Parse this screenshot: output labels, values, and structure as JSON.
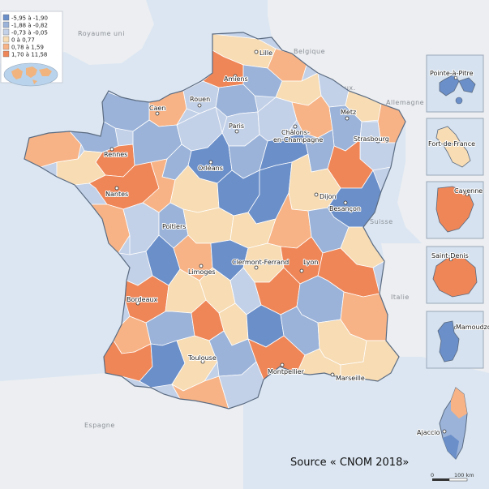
{
  "legend": {
    "classes": [
      {
        "label": "-5,95 à -1,90",
        "color": "#6b8fc9"
      },
      {
        "label": "-1,88 à -0,82",
        "color": "#9bb3d9"
      },
      {
        "label": "-0,73 à -0,05",
        "color": "#c3d1e8"
      },
      {
        "label": "0 à 0,77",
        "color": "#f7dcb4"
      },
      {
        "label": "0,78 à 1,59",
        "color": "#f7b386"
      },
      {
        "label": "1,70 à 11,58",
        "color": "#ef8658"
      }
    ]
  },
  "colors": {
    "sea": "#dbe6f2",
    "neighbors": "#eceef1",
    "border": "#ffffff"
  },
  "countries": {
    "uk": "Royaume uni",
    "belgium": "Belgique",
    "lux": "Lux.",
    "germany": "Allemagne",
    "switzerland": "Suisse",
    "italy": "Italie",
    "spain": "Espagne"
  },
  "cities": {
    "lille": "Lille",
    "amiens": "Amiens",
    "rouen": "Rouen",
    "caen": "Caen",
    "paris": "Paris",
    "chalons": "Châlons-en-Champagne",
    "chalons_1": "Châlons-",
    "chalons_2": "en-Champagne",
    "metz": "Metz",
    "strasbourg": "Strasbourg",
    "rennes": "Rennes",
    "nantes": "Nantes",
    "orleans": "Orléans",
    "dijon": "Dijon",
    "besancon": "Besançon",
    "poitiers": "Poitiers",
    "limoges": "Limoges",
    "clermont": "Clermont-Ferrand",
    "lyon": "Lyon",
    "bordeaux": "Bordeaux",
    "toulouse": "Toulouse",
    "montpellier": "Montpellier",
    "marseille": "Marseille",
    "ajaccio": "Ajaccio"
  },
  "overseas": {
    "guadeloupe": "Pointe-à-Pitre",
    "martinique": "Fort-de-France",
    "guyane": "Cayenne",
    "reunion": "Saint-Denis",
    "mayotte": "Mamoudzou"
  },
  "source_text": "Source « CNOM 2018»",
  "scale": {
    "zero": "0",
    "max": "100 km"
  }
}
